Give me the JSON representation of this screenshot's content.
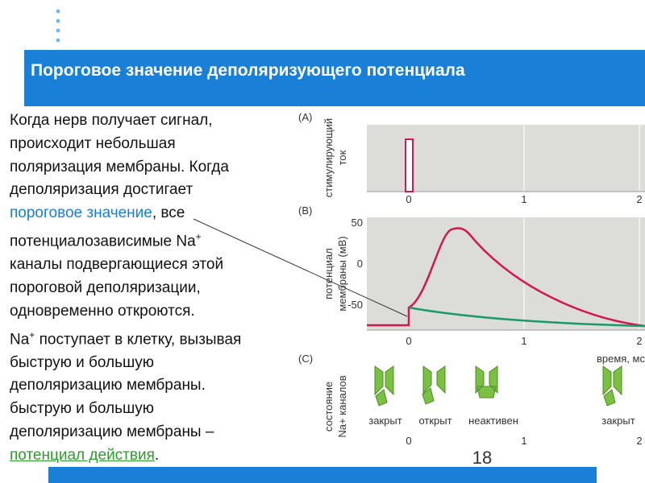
{
  "header": {
    "title": "Пороговое значение деполяризующего потенциала"
  },
  "body": {
    "lines": [
      [
        "Когда нерв получает сигнал,"
      ],
      [
        "происходит небольшая"
      ],
      [
        "поляризация мембраны.  Когда"
      ],
      [
        "деполяризация достигает"
      ],
      [
        "пороговое значение",
        ", все"
      ],
      [
        "потенциалозависимые Na",
        "+"
      ],
      [
        "каналы подвергающиеся этой"
      ],
      [
        "пороговой деполяризации,"
      ],
      [
        "одновременно откроются."
      ],
      [
        "Na",
        "+",
        " поступает в клетку, вызывая"
      ],
      [
        "быструю и большую"
      ],
      [
        "деполяризацию мембраны."
      ],
      [
        "быструю и большую"
      ],
      [
        "деполяризацию мембраны –"
      ],
      [
        "потенциал действия",
        "."
      ]
    ]
  },
  "figure": {
    "panel_a": {
      "label": "(A)",
      "y_label": [
        "стимулирующий",
        "ток"
      ],
      "x_ticks": [
        0,
        1,
        2
      ]
    },
    "panel_b": {
      "label": "(B)",
      "y_label": [
        "потенциал",
        "мембраны (мВ)"
      ],
      "y_ticks": [
        50,
        0,
        -50
      ],
      "x_ticks": [
        0,
        1,
        2
      ],
      "x_label": "время, мс"
    },
    "panel_c": {
      "label": "(C)",
      "y_label": [
        "состояние",
        "Na+ каналов"
      ],
      "states": [
        "закрыт",
        "открыт",
        "неактивен",
        "закрыт"
      ],
      "x_ticks": [
        0,
        1,
        2
      ]
    }
  },
  "page_number": "18"
}
